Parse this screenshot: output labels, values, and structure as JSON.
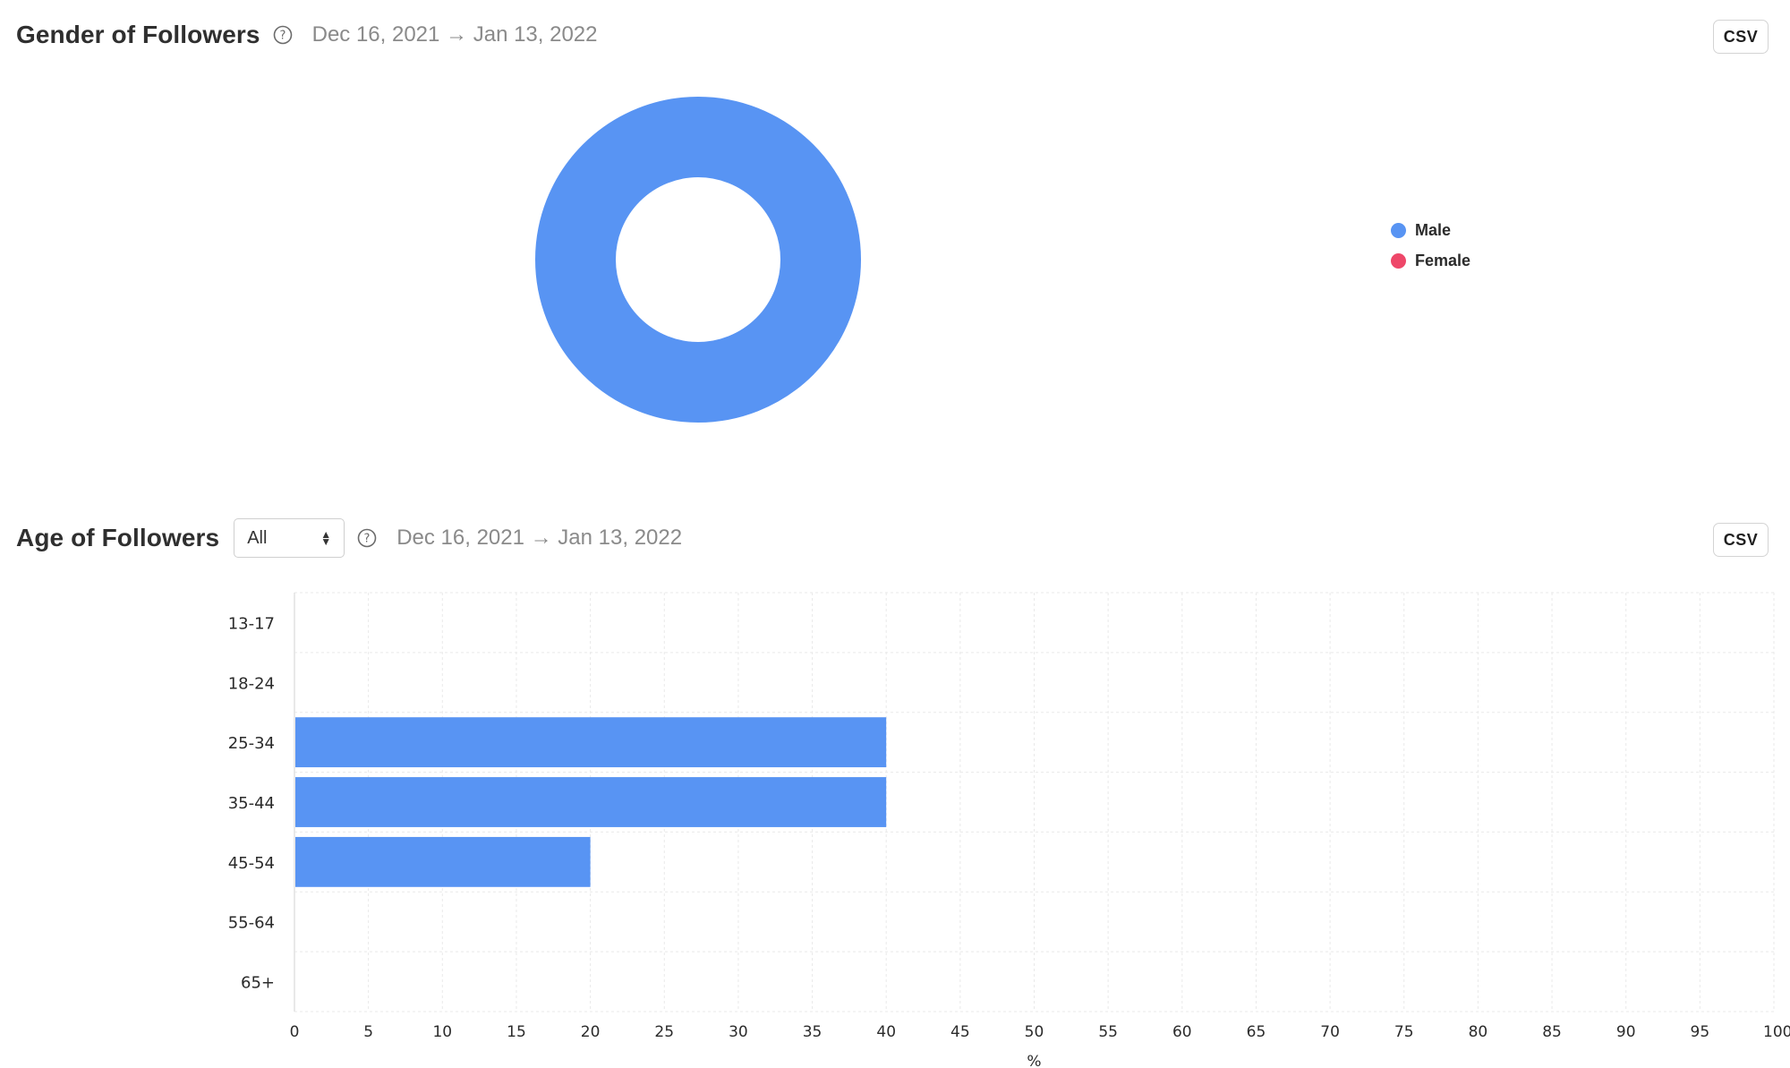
{
  "gender_section": {
    "title": "Gender of Followers",
    "date_range": "Dec 16, 2021 → Jan 13, 2022",
    "csv_label": "CSV"
  },
  "age_section": {
    "title": "Age of Followers",
    "filter_value": "All",
    "date_range": "Dec 16, 2021 → Jan 13, 2022",
    "csv_label": "CSV"
  },
  "colors": {
    "male": "#5894f3",
    "female": "#ee4769",
    "accent": "#5894f3"
  },
  "icons": {
    "help": "question-circle-icon",
    "select": "up-down-chevron-icon"
  },
  "chart_data": [
    {
      "type": "pie",
      "variant": "donut",
      "labels": [
        "Male",
        "Female"
      ],
      "values": [
        100,
        0
      ],
      "colors": [
        "#5894f3",
        "#ee4769"
      ],
      "legend": "right"
    },
    {
      "type": "bar",
      "orientation": "horizontal",
      "categories": [
        "13-17",
        "18-24",
        "25-34",
        "35-44",
        "45-54",
        "55-64",
        "65+"
      ],
      "values": [
        0,
        0,
        40,
        40,
        20,
        0,
        0
      ],
      "xlabel": "%",
      "xlim": [
        0,
        100
      ],
      "xticks": [
        0,
        5,
        10,
        15,
        20,
        25,
        30,
        35,
        40,
        45,
        50,
        55,
        60,
        65,
        70,
        75,
        80,
        85,
        90,
        95,
        100
      ],
      "grid": true,
      "color": "#5894f3"
    }
  ]
}
